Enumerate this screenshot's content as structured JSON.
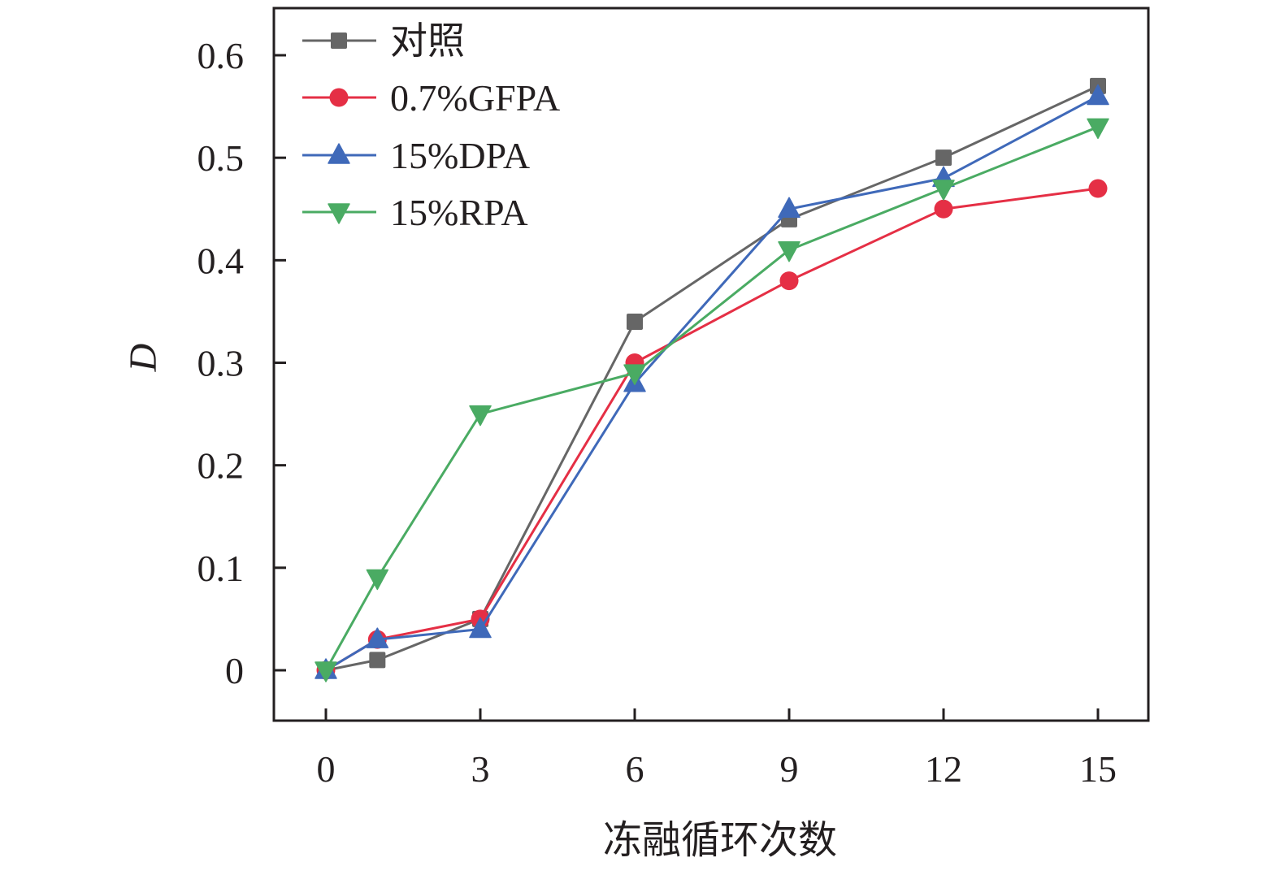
{
  "chart_data": {
    "type": "line",
    "title": "",
    "xlabel": "冻融循环次数",
    "ylabel": "D",
    "x": [
      0,
      1,
      3,
      6,
      9,
      12,
      15
    ],
    "xticks": [
      0,
      3,
      6,
      9,
      12,
      15
    ],
    "xtick_labels": [
      "0",
      "3",
      "6",
      "9",
      "12",
      "15"
    ],
    "yticks": [
      0,
      0.1,
      0.2,
      0.3,
      0.4,
      0.5,
      0.6
    ],
    "ytick_labels": [
      "0",
      "0.1",
      "0.2",
      "0.3",
      "0.4",
      "0.5",
      "0.6"
    ],
    "xlim": [
      -1,
      16
    ],
    "ylim": [
      -0.05,
      0.645
    ],
    "grid": false,
    "legend_position": "top-left",
    "series": [
      {
        "name": "对照",
        "marker": "square",
        "color": "#666666",
        "values": [
          0,
          0.01,
          0.05,
          0.34,
          0.44,
          0.5,
          0.57
        ]
      },
      {
        "name": "0.7%GFPA",
        "marker": "circle",
        "color": "#e52f45",
        "values": [
          0,
          0.03,
          0.05,
          0.3,
          0.38,
          0.45,
          0.47
        ]
      },
      {
        "name": "15%DPA",
        "marker": "triangle-up",
        "color": "#3f69b9",
        "values": [
          0,
          0.03,
          0.04,
          0.28,
          0.45,
          0.48,
          0.56
        ]
      },
      {
        "name": "15%RPA",
        "marker": "triangle-down",
        "color": "#4aab63",
        "values": [
          0,
          0.09,
          0.25,
          0.29,
          0.41,
          0.47,
          0.53
        ]
      }
    ]
  }
}
